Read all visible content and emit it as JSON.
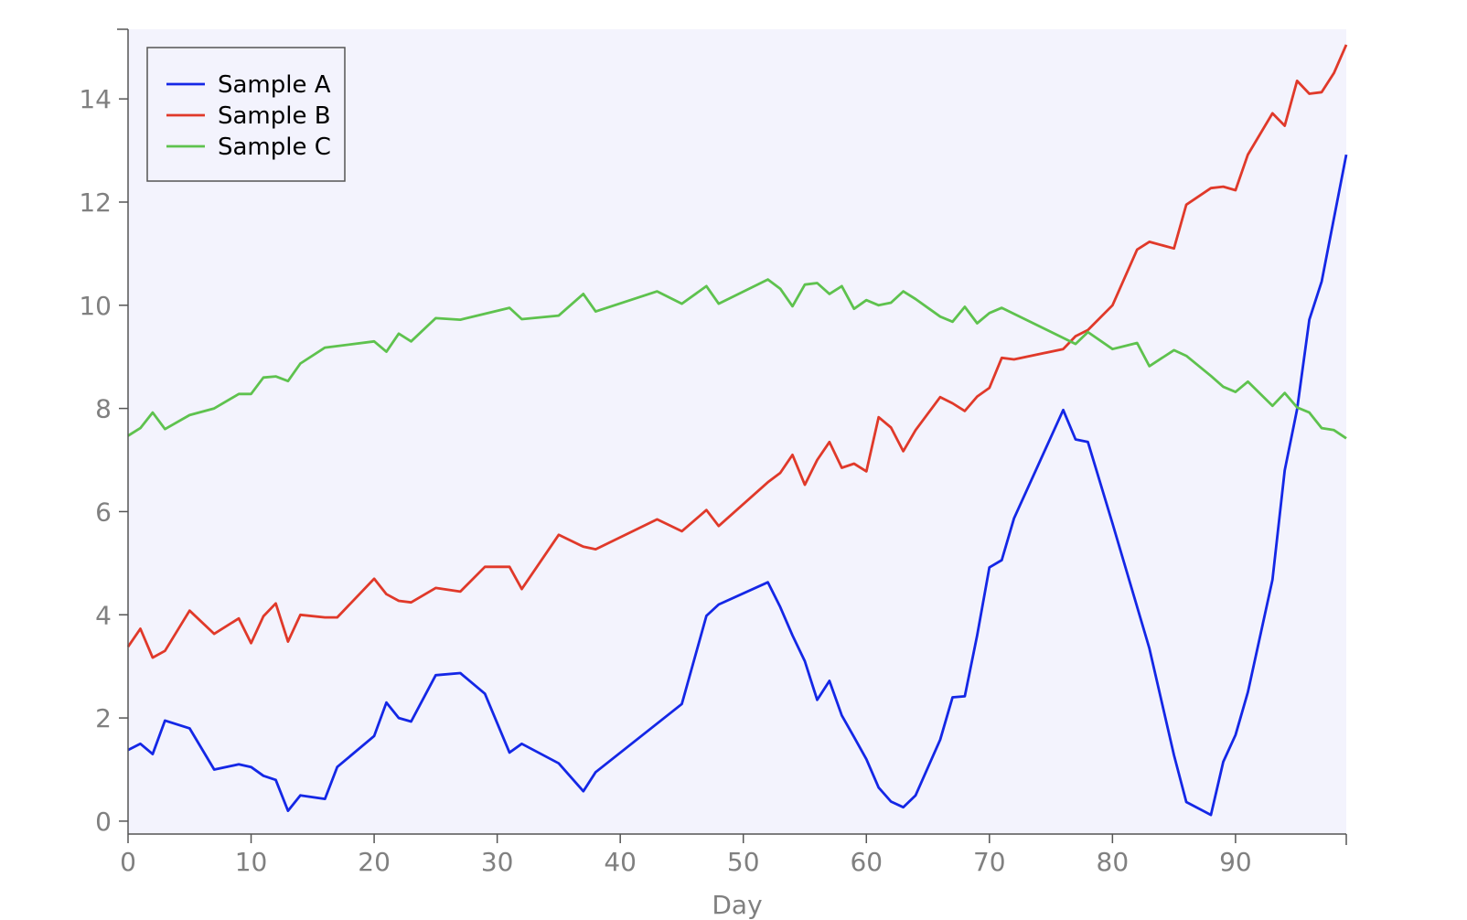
{
  "chart_data": {
    "type": "line",
    "xlabel": "Day",
    "ylabel": "",
    "xlim": [
      0,
      99
    ],
    "ylim": [
      -0.25,
      15.35
    ],
    "xticks": [
      0,
      10,
      20,
      30,
      40,
      50,
      60,
      70,
      80,
      90
    ],
    "yticks": [
      0,
      2,
      4,
      6,
      8,
      10,
      12,
      14
    ],
    "grid": false,
    "legend_position": "top-left",
    "colors": {
      "plot_background": "#f3f3fd",
      "axis": "#555555",
      "tick_label": "#808080"
    },
    "series": [
      {
        "name": "Sample A",
        "color": "#1427e6",
        "points": [
          [
            0,
            1.38
          ],
          [
            1,
            1.5
          ],
          [
            2,
            1.3
          ],
          [
            3,
            1.95
          ],
          [
            5,
            1.8
          ],
          [
            7,
            1.0
          ],
          [
            9,
            1.1
          ],
          [
            10,
            1.05
          ],
          [
            11,
            0.88
          ],
          [
            12,
            0.8
          ],
          [
            13,
            0.2
          ],
          [
            14,
            0.5
          ],
          [
            16,
            0.43
          ],
          [
            17,
            1.05
          ],
          [
            20,
            1.65
          ],
          [
            21,
            2.3
          ],
          [
            22,
            2.0
          ],
          [
            23,
            1.93
          ],
          [
            25,
            2.83
          ],
          [
            27,
            2.87
          ],
          [
            29,
            2.47
          ],
          [
            31,
            1.33
          ],
          [
            32,
            1.5
          ],
          [
            35,
            1.12
          ],
          [
            37,
            0.58
          ],
          [
            38,
            0.95
          ],
          [
            45,
            2.27
          ],
          [
            47,
            3.98
          ],
          [
            48,
            4.2
          ],
          [
            52,
            4.63
          ],
          [
            53,
            4.15
          ],
          [
            54,
            3.6
          ],
          [
            55,
            3.1
          ],
          [
            56,
            2.35
          ],
          [
            57,
            2.72
          ],
          [
            58,
            2.05
          ],
          [
            59,
            1.63
          ],
          [
            60,
            1.2
          ],
          [
            61,
            0.65
          ],
          [
            62,
            0.38
          ],
          [
            63,
            0.27
          ],
          [
            64,
            0.5
          ],
          [
            66,
            1.58
          ],
          [
            67,
            2.4
          ],
          [
            68,
            2.42
          ],
          [
            69,
            3.6
          ],
          [
            70,
            4.92
          ],
          [
            71,
            5.06
          ],
          [
            72,
            5.87
          ],
          [
            76,
            7.97
          ],
          [
            77,
            7.4
          ],
          [
            78,
            7.35
          ],
          [
            80,
            5.77
          ],
          [
            83,
            3.35
          ],
          [
            85,
            1.28
          ],
          [
            86,
            0.37
          ],
          [
            88,
            0.12
          ],
          [
            89,
            1.15
          ],
          [
            90,
            1.67
          ],
          [
            91,
            2.5
          ],
          [
            93,
            4.68
          ],
          [
            94,
            6.8
          ],
          [
            95,
            7.98
          ],
          [
            96,
            9.72
          ],
          [
            97,
            10.46
          ],
          [
            99,
            12.92
          ]
        ]
      },
      {
        "name": "Sample B",
        "color": "#e0392a",
        "points": [
          [
            0,
            3.38
          ],
          [
            1,
            3.73
          ],
          [
            2,
            3.17
          ],
          [
            3,
            3.3
          ],
          [
            5,
            4.08
          ],
          [
            7,
            3.63
          ],
          [
            9,
            3.93
          ],
          [
            10,
            3.45
          ],
          [
            11,
            3.97
          ],
          [
            12,
            4.22
          ],
          [
            13,
            3.48
          ],
          [
            14,
            4.0
          ],
          [
            16,
            3.95
          ],
          [
            17,
            3.95
          ],
          [
            20,
            4.7
          ],
          [
            21,
            4.4
          ],
          [
            22,
            4.27
          ],
          [
            23,
            4.24
          ],
          [
            25,
            4.52
          ],
          [
            27,
            4.45
          ],
          [
            29,
            4.93
          ],
          [
            31,
            4.93
          ],
          [
            32,
            4.5
          ],
          [
            35,
            5.55
          ],
          [
            37,
            5.32
          ],
          [
            38,
            5.27
          ],
          [
            43,
            5.85
          ],
          [
            45,
            5.62
          ],
          [
            47,
            6.03
          ],
          [
            48,
            5.72
          ],
          [
            52,
            6.57
          ],
          [
            53,
            6.75
          ],
          [
            54,
            7.1
          ],
          [
            55,
            6.52
          ],
          [
            56,
            7.0
          ],
          [
            57,
            7.35
          ],
          [
            58,
            6.85
          ],
          [
            59,
            6.93
          ],
          [
            60,
            6.78
          ],
          [
            61,
            7.83
          ],
          [
            62,
            7.63
          ],
          [
            63,
            7.17
          ],
          [
            64,
            7.58
          ],
          [
            66,
            8.22
          ],
          [
            67,
            8.1
          ],
          [
            68,
            7.95
          ],
          [
            69,
            8.23
          ],
          [
            70,
            8.4
          ],
          [
            71,
            8.98
          ],
          [
            72,
            8.95
          ],
          [
            76,
            9.15
          ],
          [
            77,
            9.4
          ],
          [
            78,
            9.52
          ],
          [
            80,
            10.0
          ],
          [
            82,
            11.08
          ],
          [
            83,
            11.23
          ],
          [
            85,
            11.1
          ],
          [
            86,
            11.95
          ],
          [
            88,
            12.27
          ],
          [
            89,
            12.3
          ],
          [
            90,
            12.23
          ],
          [
            91,
            12.92
          ],
          [
            93,
            13.72
          ],
          [
            94,
            13.48
          ],
          [
            95,
            14.35
          ],
          [
            96,
            14.1
          ],
          [
            97,
            14.13
          ],
          [
            98,
            14.5
          ],
          [
            99,
            15.05
          ]
        ]
      },
      {
        "name": "Sample C",
        "color": "#5ec24e",
        "points": [
          [
            0,
            7.47
          ],
          [
            1,
            7.62
          ],
          [
            2,
            7.92
          ],
          [
            3,
            7.6
          ],
          [
            5,
            7.87
          ],
          [
            7,
            8.0
          ],
          [
            9,
            8.28
          ],
          [
            10,
            8.28
          ],
          [
            11,
            8.6
          ],
          [
            12,
            8.62
          ],
          [
            13,
            8.53
          ],
          [
            14,
            8.87
          ],
          [
            16,
            9.18
          ],
          [
            20,
            9.3
          ],
          [
            21,
            9.1
          ],
          [
            22,
            9.45
          ],
          [
            23,
            9.3
          ],
          [
            25,
            9.75
          ],
          [
            27,
            9.72
          ],
          [
            31,
            9.95
          ],
          [
            32,
            9.73
          ],
          [
            35,
            9.8
          ],
          [
            37,
            10.22
          ],
          [
            38,
            9.88
          ],
          [
            43,
            10.27
          ],
          [
            45,
            10.03
          ],
          [
            47,
            10.37
          ],
          [
            48,
            10.03
          ],
          [
            52,
            10.5
          ],
          [
            53,
            10.32
          ],
          [
            54,
            9.98
          ],
          [
            55,
            10.4
          ],
          [
            56,
            10.43
          ],
          [
            57,
            10.22
          ],
          [
            58,
            10.37
          ],
          [
            59,
            9.93
          ],
          [
            60,
            10.1
          ],
          [
            61,
            10.0
          ],
          [
            62,
            10.05
          ],
          [
            63,
            10.27
          ],
          [
            64,
            10.12
          ],
          [
            66,
            9.78
          ],
          [
            67,
            9.68
          ],
          [
            68,
            9.97
          ],
          [
            69,
            9.65
          ],
          [
            70,
            9.85
          ],
          [
            71,
            9.95
          ],
          [
            77,
            9.25
          ],
          [
            78,
            9.48
          ],
          [
            80,
            9.15
          ],
          [
            82,
            9.27
          ],
          [
            83,
            8.82
          ],
          [
            85,
            9.13
          ],
          [
            86,
            9.02
          ],
          [
            88,
            8.63
          ],
          [
            89,
            8.42
          ],
          [
            90,
            8.32
          ],
          [
            91,
            8.52
          ],
          [
            93,
            8.05
          ],
          [
            94,
            8.3
          ],
          [
            95,
            8.02
          ],
          [
            96,
            7.92
          ],
          [
            97,
            7.62
          ],
          [
            98,
            7.58
          ],
          [
            99,
            7.42
          ]
        ]
      }
    ]
  }
}
